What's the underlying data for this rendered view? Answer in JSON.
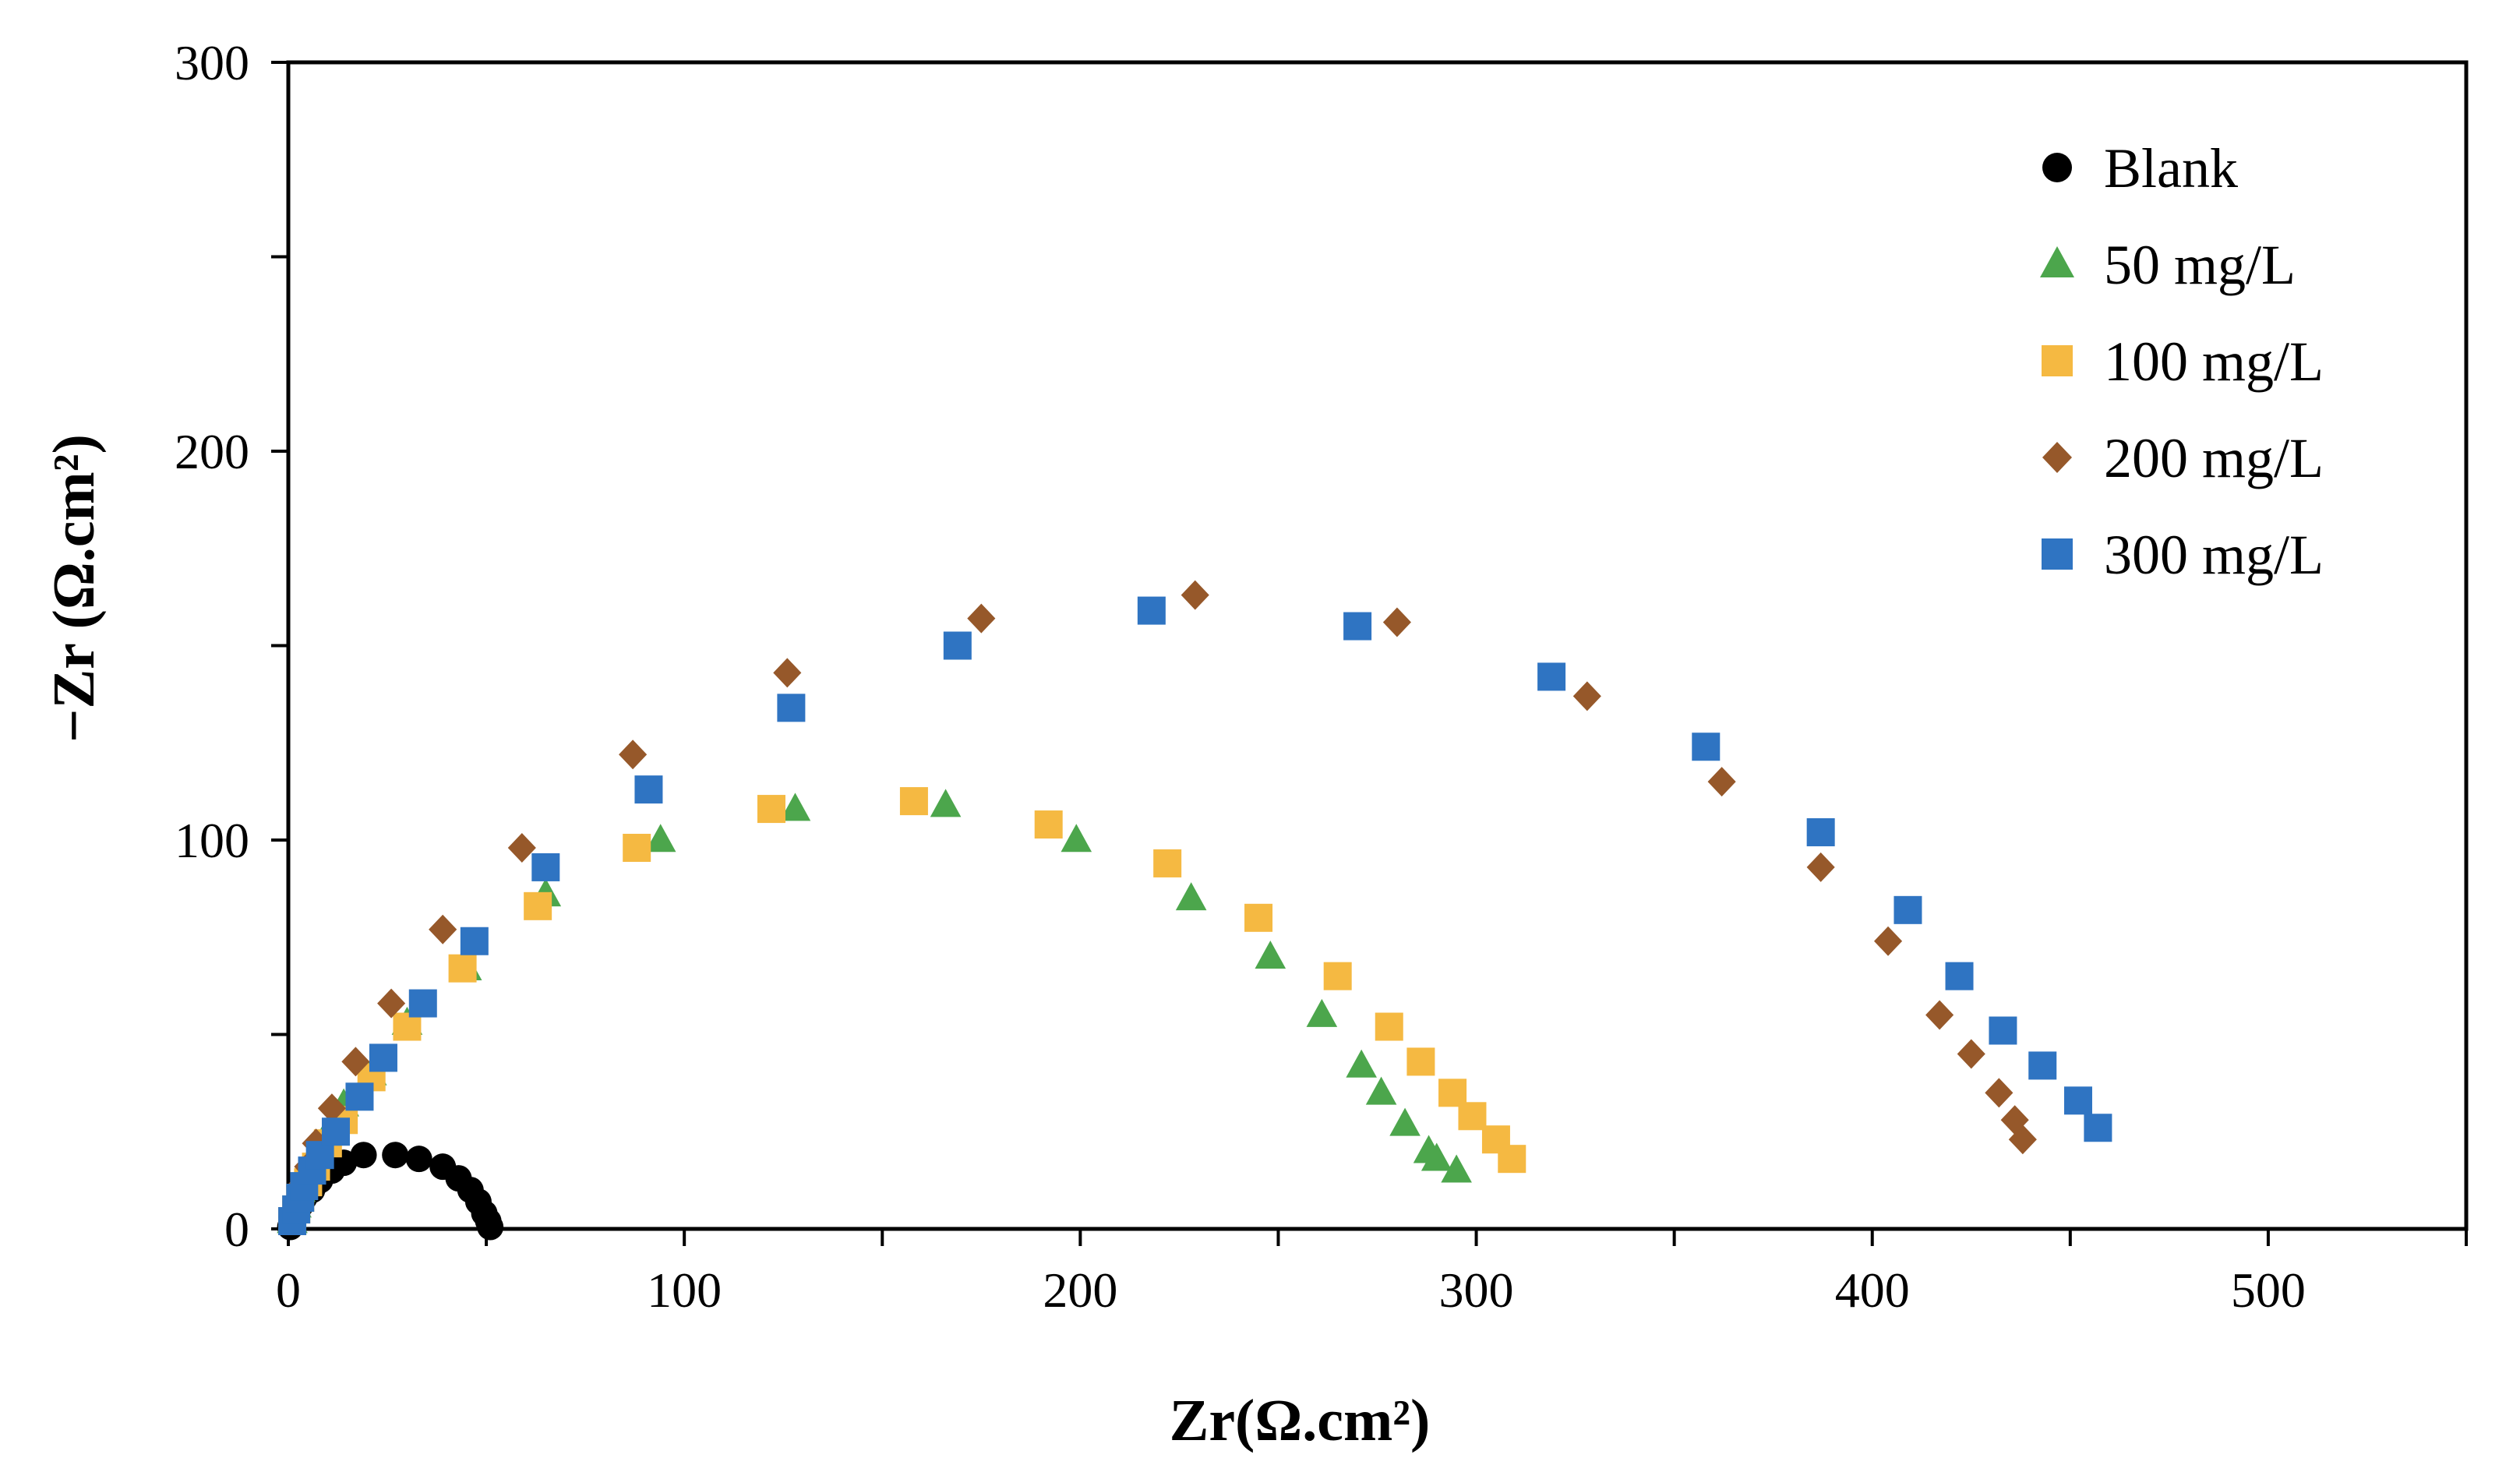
{
  "chart_data": {
    "type": "scatter",
    "title": "",
    "xlabel": "Zr(Ω.cm²)",
    "ylabel": "−Zr (Ω.cm²)",
    "xlim": [
      0,
      550
    ],
    "ylim": [
      0,
      300
    ],
    "x_ticks": [
      "0",
      "100",
      "200",
      "300",
      "400",
      "500"
    ],
    "y_ticks": [
      "0",
      "100",
      "200",
      "300"
    ],
    "legend_position": "top-right",
    "series": [
      {
        "name": "Blank",
        "marker": "circle",
        "color": "#000000",
        "points": [
          [
            0.5,
            0.5
          ],
          [
            1,
            2
          ],
          [
            2,
            4
          ],
          [
            3,
            6
          ],
          [
            4,
            8
          ],
          [
            6,
            10
          ],
          [
            8,
            12.5
          ],
          [
            11,
            15
          ],
          [
            14,
            17
          ],
          [
            19,
            19
          ],
          [
            27,
            19
          ],
          [
            33,
            18
          ],
          [
            39,
            16
          ],
          [
            43,
            13
          ],
          [
            46,
            10
          ],
          [
            48,
            7
          ],
          [
            49.5,
            4
          ],
          [
            50.5,
            2
          ],
          [
            51,
            0.5
          ]
        ]
      },
      {
        "name": "50 mg/L",
        "marker": "triangle",
        "color": "#4ca64c",
        "points": [
          [
            1,
            2
          ],
          [
            2,
            6
          ],
          [
            3,
            10
          ],
          [
            5,
            15
          ],
          [
            7,
            20
          ],
          [
            10,
            25
          ],
          [
            14,
            32
          ],
          [
            21,
            40
          ],
          [
            30,
            53
          ],
          [
            45,
            67
          ],
          [
            65,
            86
          ],
          [
            94,
            100
          ],
          [
            128,
            108
          ],
          [
            166,
            109
          ],
          [
            199,
            100
          ],
          [
            228,
            85
          ],
          [
            248,
            70
          ],
          [
            261,
            55
          ],
          [
            271,
            42
          ],
          [
            276,
            35
          ],
          [
            282,
            27
          ],
          [
            288,
            20
          ],
          [
            290,
            18
          ],
          [
            295,
            15
          ]
        ]
      },
      {
        "name": "100 mg/L",
        "marker": "square",
        "color": "#f5b942",
        "points": [
          [
            1,
            2
          ],
          [
            2,
            5
          ],
          [
            3,
            8
          ],
          [
            5,
            12
          ],
          [
            7,
            16
          ],
          [
            10,
            22
          ],
          [
            14,
            28
          ],
          [
            21,
            39
          ],
          [
            30,
            52
          ],
          [
            44,
            67
          ],
          [
            63,
            83
          ],
          [
            88,
            98
          ],
          [
            122,
            108
          ],
          [
            158,
            110
          ],
          [
            192,
            104
          ],
          [
            222,
            94
          ],
          [
            245,
            80
          ],
          [
            265,
            65
          ],
          [
            278,
            52
          ],
          [
            286,
            43
          ],
          [
            294,
            35
          ],
          [
            299,
            29
          ],
          [
            305,
            23
          ],
          [
            309,
            18
          ]
        ]
      },
      {
        "name": "200 mg/L",
        "marker": "diamond",
        "color": "#96582a",
        "points": [
          [
            1,
            3
          ],
          [
            2,
            7
          ],
          [
            3,
            11
          ],
          [
            5,
            16
          ],
          [
            7,
            22
          ],
          [
            11,
            31
          ],
          [
            17,
            43
          ],
          [
            26,
            58
          ],
          [
            39,
            77
          ],
          [
            59,
            98
          ],
          [
            87,
            122
          ],
          [
            126,
            143
          ],
          [
            175,
            157
          ],
          [
            229,
            163
          ],
          [
            280,
            156
          ],
          [
            328,
            137
          ],
          [
            362,
            115
          ],
          [
            387,
            93
          ],
          [
            404,
            74
          ],
          [
            417,
            55
          ],
          [
            425,
            45
          ],
          [
            432,
            35
          ],
          [
            436,
            28
          ],
          [
            438,
            23
          ]
        ]
      },
      {
        "name": "300 mg/L",
        "marker": "square",
        "color": "#2f74c2",
        "points": [
          [
            1,
            2
          ],
          [
            2,
            5
          ],
          [
            3,
            8
          ],
          [
            4,
            11
          ],
          [
            6,
            15
          ],
          [
            8,
            19
          ],
          [
            12,
            25
          ],
          [
            18,
            34
          ],
          [
            24,
            44
          ],
          [
            34,
            58
          ],
          [
            47,
            74
          ],
          [
            65,
            93
          ],
          [
            91,
            113
          ],
          [
            127,
            134
          ],
          [
            169,
            150
          ],
          [
            218,
            159
          ],
          [
            270,
            155
          ],
          [
            319,
            142
          ],
          [
            358,
            124
          ],
          [
            387,
            102
          ],
          [
            409,
            82
          ],
          [
            422,
            65
          ],
          [
            433,
            51
          ],
          [
            443,
            42
          ],
          [
            452,
            33
          ],
          [
            457,
            26
          ]
        ]
      }
    ]
  }
}
